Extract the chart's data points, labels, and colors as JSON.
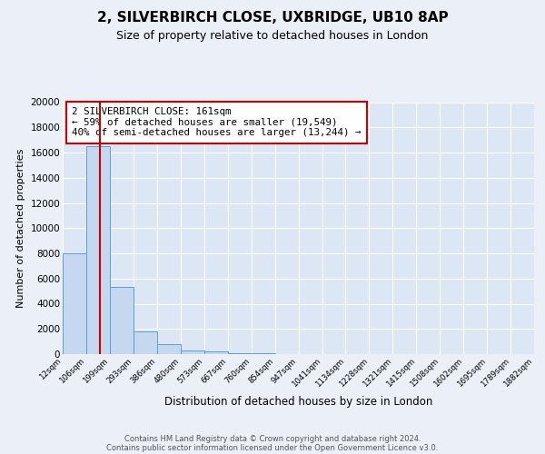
{
  "title_line1": "2, SILVERBIRCH CLOSE, UXBRIDGE, UB10 8AP",
  "title_line2": "Size of property relative to detached houses in London",
  "xlabel": "Distribution of detached houses by size in London",
  "ylabel": "Number of detached properties",
  "bin_edges": [
    12,
    106,
    199,
    293,
    386,
    480,
    573,
    667,
    760,
    854,
    947,
    1041,
    1134,
    1228,
    1321,
    1415,
    1508,
    1602,
    1695,
    1789,
    1882
  ],
  "bar_values": [
    8000,
    16500,
    5300,
    1800,
    800,
    300,
    200,
    100,
    100,
    0,
    0,
    0,
    0,
    0,
    0,
    0,
    0,
    0,
    0,
    0
  ],
  "bar_color": "#c5d8f0",
  "bar_edge_color": "#5a9fd4",
  "property_size": 161,
  "red_line_color": "#cc0000",
  "annotation_line1": "2 SILVERBIRCH CLOSE: 161sqm",
  "annotation_line2": "← 59% of detached houses are smaller (19,549)",
  "annotation_line3": "40% of semi-detached houses are larger (13,244) →",
  "annotation_box_edge_color": "#cc0000",
  "ylim_max": 20000,
  "ytick_step": 2000,
  "plot_bg_color": "#dce6f5",
  "fig_bg_color": "#eaeff8",
  "grid_color": "#ffffff",
  "footer_line1": "Contains HM Land Registry data © Crown copyright and database right 2024.",
  "footer_line2": "Contains public sector information licensed under the Open Government Licence v3.0."
}
